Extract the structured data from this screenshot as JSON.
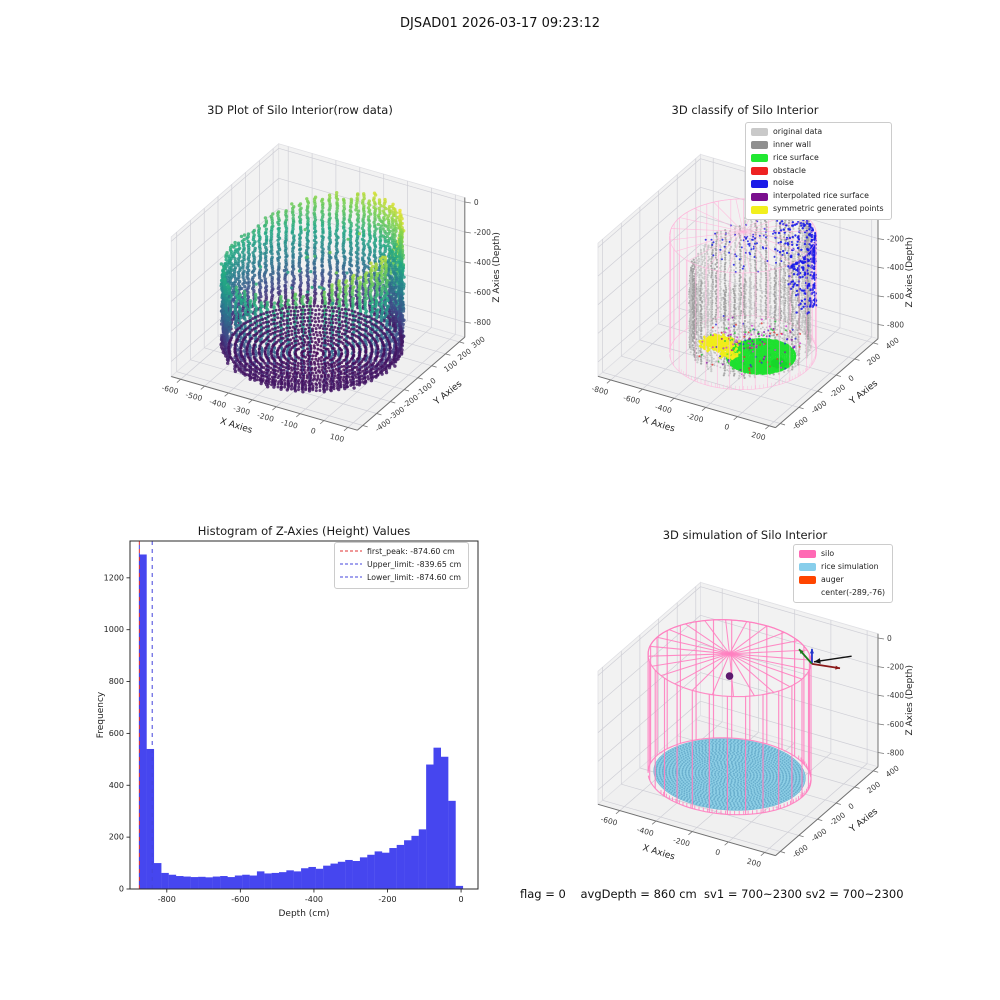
{
  "figure": {
    "title": "DJSAD01 2026-03-17 09:23:12",
    "footer": "flag = 0    avgDepth = 860 cm  sv1 = 700~2300 sv2 = 700~2300"
  },
  "chart_data": [
    {
      "id": "raw",
      "type": "scatter3d",
      "title": "3D Plot of Silo Interior(row data)",
      "xlabel": "X Axies",
      "ylabel": "Y Axies",
      "zlabel": "Z Axies (Depth)",
      "xlim": [
        -640,
        140
      ],
      "ylim": [
        -440,
        340
      ],
      "zlim": [
        -900,
        30
      ],
      "xticks": [
        -600,
        -500,
        -400,
        -300,
        -200,
        -100,
        0,
        100
      ],
      "yticks": [
        -400,
        -300,
        -200,
        -100,
        0,
        100,
        200,
        300
      ],
      "zticks": [
        0,
        -200,
        -400,
        -600,
        -800
      ],
      "colormap": "viridis",
      "cylinder": {
        "center": [
          -270,
          -55
        ],
        "radius": 325,
        "rim_z_high": -20,
        "rim_z_low": -330,
        "floor_z": -845,
        "bowl_center_z": -885
      }
    },
    {
      "id": "classify",
      "type": "scatter3d",
      "title": "3D classify of Silo Interior",
      "xlabel": "X Axies",
      "ylabel": "Y Axies",
      "zlabel": "Z Axies (Depth)",
      "xlim": [
        -880,
        240
      ],
      "ylim": [
        -650,
        450
      ],
      "zlim": [
        -900,
        30
      ],
      "xticks": [
        -800,
        -600,
        -400,
        -200,
        0,
        200
      ],
      "yticks": [
        -600,
        -400,
        -200,
        0,
        200,
        400
      ],
      "zticks": [
        0,
        -200,
        -400,
        -600,
        -800
      ],
      "legend": [
        {
          "label": "original data",
          "color": "#c9c9c9"
        },
        {
          "label": "inner wall",
          "color": "#8f8f8f"
        },
        {
          "label": "rice surface",
          "color": "#21e832"
        },
        {
          "label": "obstacle",
          "color": "#ee2222"
        },
        {
          "label": "noise",
          "color": "#1b1be8"
        },
        {
          "label": "interpolated rice surface",
          "color": "#7a0f8e"
        },
        {
          "label": "symmetric generated points",
          "color": "#f2ef1d"
        }
      ],
      "silo_wireframe": {
        "center": [
          -300,
          -80
        ],
        "radius": 400,
        "top_z": -55,
        "bottom_z": -870,
        "color": "#ffb3d9"
      },
      "wall": {
        "center": [
          -270,
          -55
        ],
        "radius": 325,
        "floor_z": -845
      },
      "rice_surface": {
        "center": [
          -140,
          -160
        ],
        "z": -812,
        "ring_max_radius": 185
      },
      "symmetric_points": {
        "center": [
          -415,
          -140
        ],
        "z": -800
      },
      "noise_band": {
        "arc_deg": [
          -20,
          95
        ],
        "z_top": -75
      }
    },
    {
      "id": "histogram",
      "type": "histogram",
      "title": "Histogram of Z-Axies (Height) Values",
      "xlabel": "Depth (cm)",
      "ylabel": "Frequency",
      "xlim": [
        -900,
        46
      ],
      "ylim": [
        0,
        1342
      ],
      "xticks": [
        -800,
        -600,
        -400,
        -200,
        0
      ],
      "yticks": [
        0,
        200,
        400,
        600,
        800,
        1000,
        1200
      ],
      "bar_color": "#4646ef",
      "bin_start": -875,
      "bin_width": 20,
      "counts": [
        1290,
        540,
        100,
        62,
        55,
        50,
        48,
        46,
        47,
        45,
        48,
        50,
        46,
        52,
        55,
        52,
        68,
        60,
        62,
        65,
        72,
        68,
        80,
        85,
        78,
        90,
        98,
        105,
        112,
        108,
        122,
        132,
        145,
        140,
        158,
        170,
        188,
        205,
        230,
        480,
        545,
        510,
        340,
        12
      ],
      "lines": [
        {
          "label": "first_peak: -874.60 cm",
          "value": -874.6,
          "color": "#e03131"
        },
        {
          "label": "Upper_limit: -839.65 cm",
          "value": -839.65,
          "color": "#4444dd"
        },
        {
          "label": "Lower_limit: -874.60 cm",
          "value": -874.6,
          "color": "#4444dd"
        }
      ]
    },
    {
      "id": "simulation",
      "type": "scatter3d",
      "title": "3D simulation of Silo Interior",
      "xlabel": "X Axies",
      "ylabel": "Y Axies",
      "zlabel": "Z Axies (Depth)",
      "xlim": [
        -720,
        260
      ],
      "ylim": [
        -650,
        450
      ],
      "zlim": [
        -900,
        30
      ],
      "xticks": [
        -600,
        -400,
        -200,
        0,
        200
      ],
      "yticks": [
        -600,
        -400,
        -200,
        0,
        200,
        400
      ],
      "zticks": [
        0,
        -200,
        -400,
        -600,
        -800
      ],
      "legend": [
        {
          "label": "silo",
          "color": "#ff69b4"
        },
        {
          "label": "rice simulation",
          "color": "#87ceeb"
        },
        {
          "label": "auger",
          "color": "#ff4500"
        },
        {
          "label": "center(-289,-76)",
          "color": null
        }
      ],
      "silo": {
        "center": [
          -289,
          -76
        ],
        "radius": 400,
        "top_z": -45,
        "bottom_z": -870,
        "color": "#ff7fc0"
      },
      "rice_surface": {
        "z": -858,
        "radius": 372,
        "color": "#8ecfe6"
      },
      "auger_point": {
        "x": -289,
        "y": -76,
        "z": -170,
        "color": "#5c1a6e"
      }
    }
  ]
}
